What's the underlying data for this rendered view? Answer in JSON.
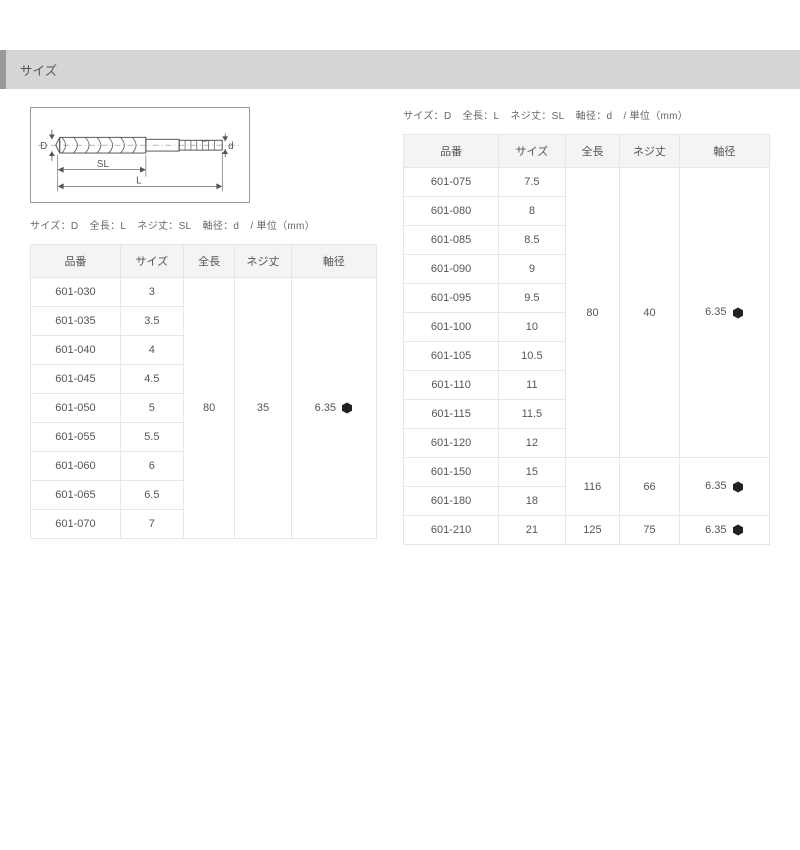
{
  "section_title": "サイズ",
  "legend": {
    "size": "サイズ：D",
    "length": "全長：L",
    "thread": "ネジ丈：SL",
    "shank": "軸径：d",
    "unit": "/ 単位（mm）"
  },
  "columns": {
    "part": "品番",
    "size": "サイズ",
    "length": "全長",
    "thread": "ネジ丈",
    "shank": "軸径"
  },
  "left_table": {
    "rows": [
      {
        "part": "601-030",
        "size": "3"
      },
      {
        "part": "601-035",
        "size": "3.5"
      },
      {
        "part": "601-040",
        "size": "4"
      },
      {
        "part": "601-045",
        "size": "4.5"
      },
      {
        "part": "601-050",
        "size": "5"
      },
      {
        "part": "601-055",
        "size": "5.5"
      },
      {
        "part": "601-060",
        "size": "6"
      },
      {
        "part": "601-065",
        "size": "6.5"
      },
      {
        "part": "601-070",
        "size": "7"
      }
    ],
    "merged": {
      "length": "80",
      "thread": "35",
      "shank": "6.35"
    }
  },
  "right_table": {
    "group1": {
      "rows": [
        {
          "part": "601-075",
          "size": "7.5"
        },
        {
          "part": "601-080",
          "size": "8"
        },
        {
          "part": "601-085",
          "size": "8.5"
        },
        {
          "part": "601-090",
          "size": "9"
        },
        {
          "part": "601-095",
          "size": "9.5"
        },
        {
          "part": "601-100",
          "size": "10"
        },
        {
          "part": "601-105",
          "size": "10.5"
        },
        {
          "part": "601-110",
          "size": "11"
        },
        {
          "part": "601-115",
          "size": "11.5"
        },
        {
          "part": "601-120",
          "size": "12"
        }
      ],
      "merged": {
        "length": "80",
        "thread": "40",
        "shank": "6.35"
      }
    },
    "group2": {
      "rows": [
        {
          "part": "601-150",
          "size": "15"
        },
        {
          "part": "601-180",
          "size": "18"
        }
      ],
      "merged": {
        "length": "116",
        "thread": "66",
        "shank": "6.35"
      }
    },
    "group3": {
      "rows": [
        {
          "part": "601-210",
          "size": "21"
        }
      ],
      "merged": {
        "length": "125",
        "thread": "75",
        "shank": "6.35"
      }
    }
  },
  "diagram": {
    "labels": {
      "D": "D",
      "d": "d",
      "SL": "SL",
      "L": "L"
    },
    "colors": {
      "stroke": "#555555",
      "bg": "#ffffff"
    }
  },
  "style": {
    "header_bg": "#d5d5d5",
    "header_border": "#9a9a9a",
    "table_border": "#e7e7e7",
    "table_header_bg": "#f4f4f4",
    "text_color": "#555555",
    "hex_fill": "#222222"
  }
}
